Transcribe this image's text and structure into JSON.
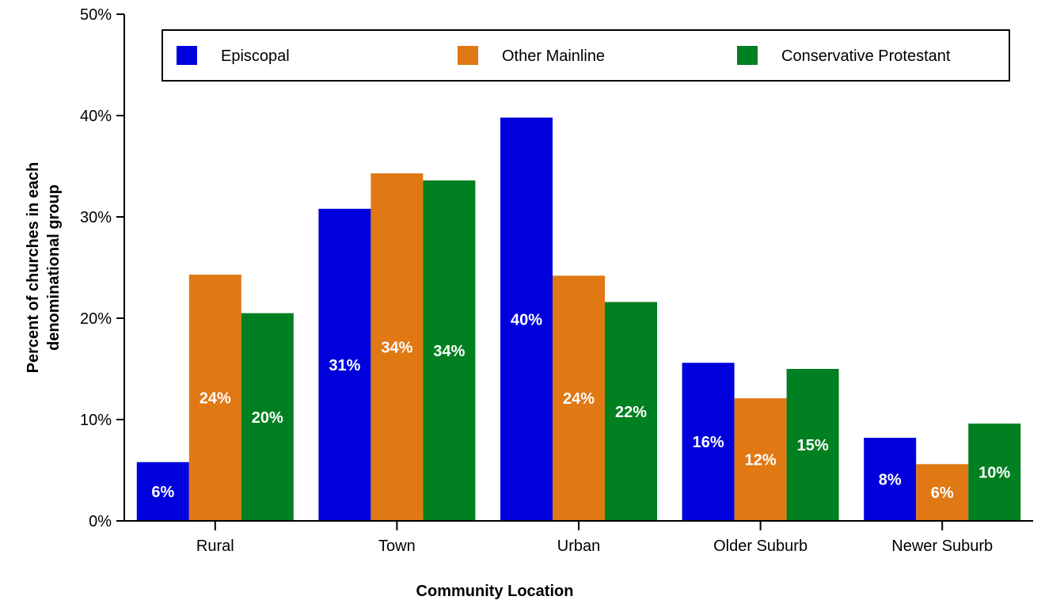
{
  "chart_data": {
    "type": "bar",
    "xlabel": "Community Location",
    "ylabel_lines": [
      "Percent of churches in each",
      "denominational group"
    ],
    "categories": [
      "Rural",
      "Town",
      "Urban",
      "Older Suburb",
      "Newer Suburb"
    ],
    "ylim": [
      0,
      50
    ],
    "yticks": [
      0,
      10,
      20,
      30,
      40,
      50
    ],
    "ytick_labels": [
      "0%",
      "10%",
      "20%",
      "30%",
      "40%",
      "50%"
    ],
    "grid": false,
    "legend_position": "top",
    "series": [
      {
        "name": "Episcopal",
        "color": "#0000dd",
        "values": [
          5.8,
          30.8,
          39.8,
          15.6,
          8.2
        ],
        "labels": [
          "6%",
          "31%",
          "40%",
          "16%",
          "8%"
        ]
      },
      {
        "name": "Other Mainline",
        "color": "#e07814",
        "values": [
          24.3,
          34.3,
          24.2,
          12.1,
          5.6
        ],
        "labels": [
          "24%",
          "34%",
          "24%",
          "12%",
          "6%"
        ]
      },
      {
        "name": "Conservative Protestant",
        "color": "#008020",
        "values": [
          20.5,
          33.6,
          21.6,
          15.0,
          9.6
        ],
        "labels": [
          "20%",
          "34%",
          "22%",
          "15%",
          "10%"
        ]
      }
    ]
  }
}
